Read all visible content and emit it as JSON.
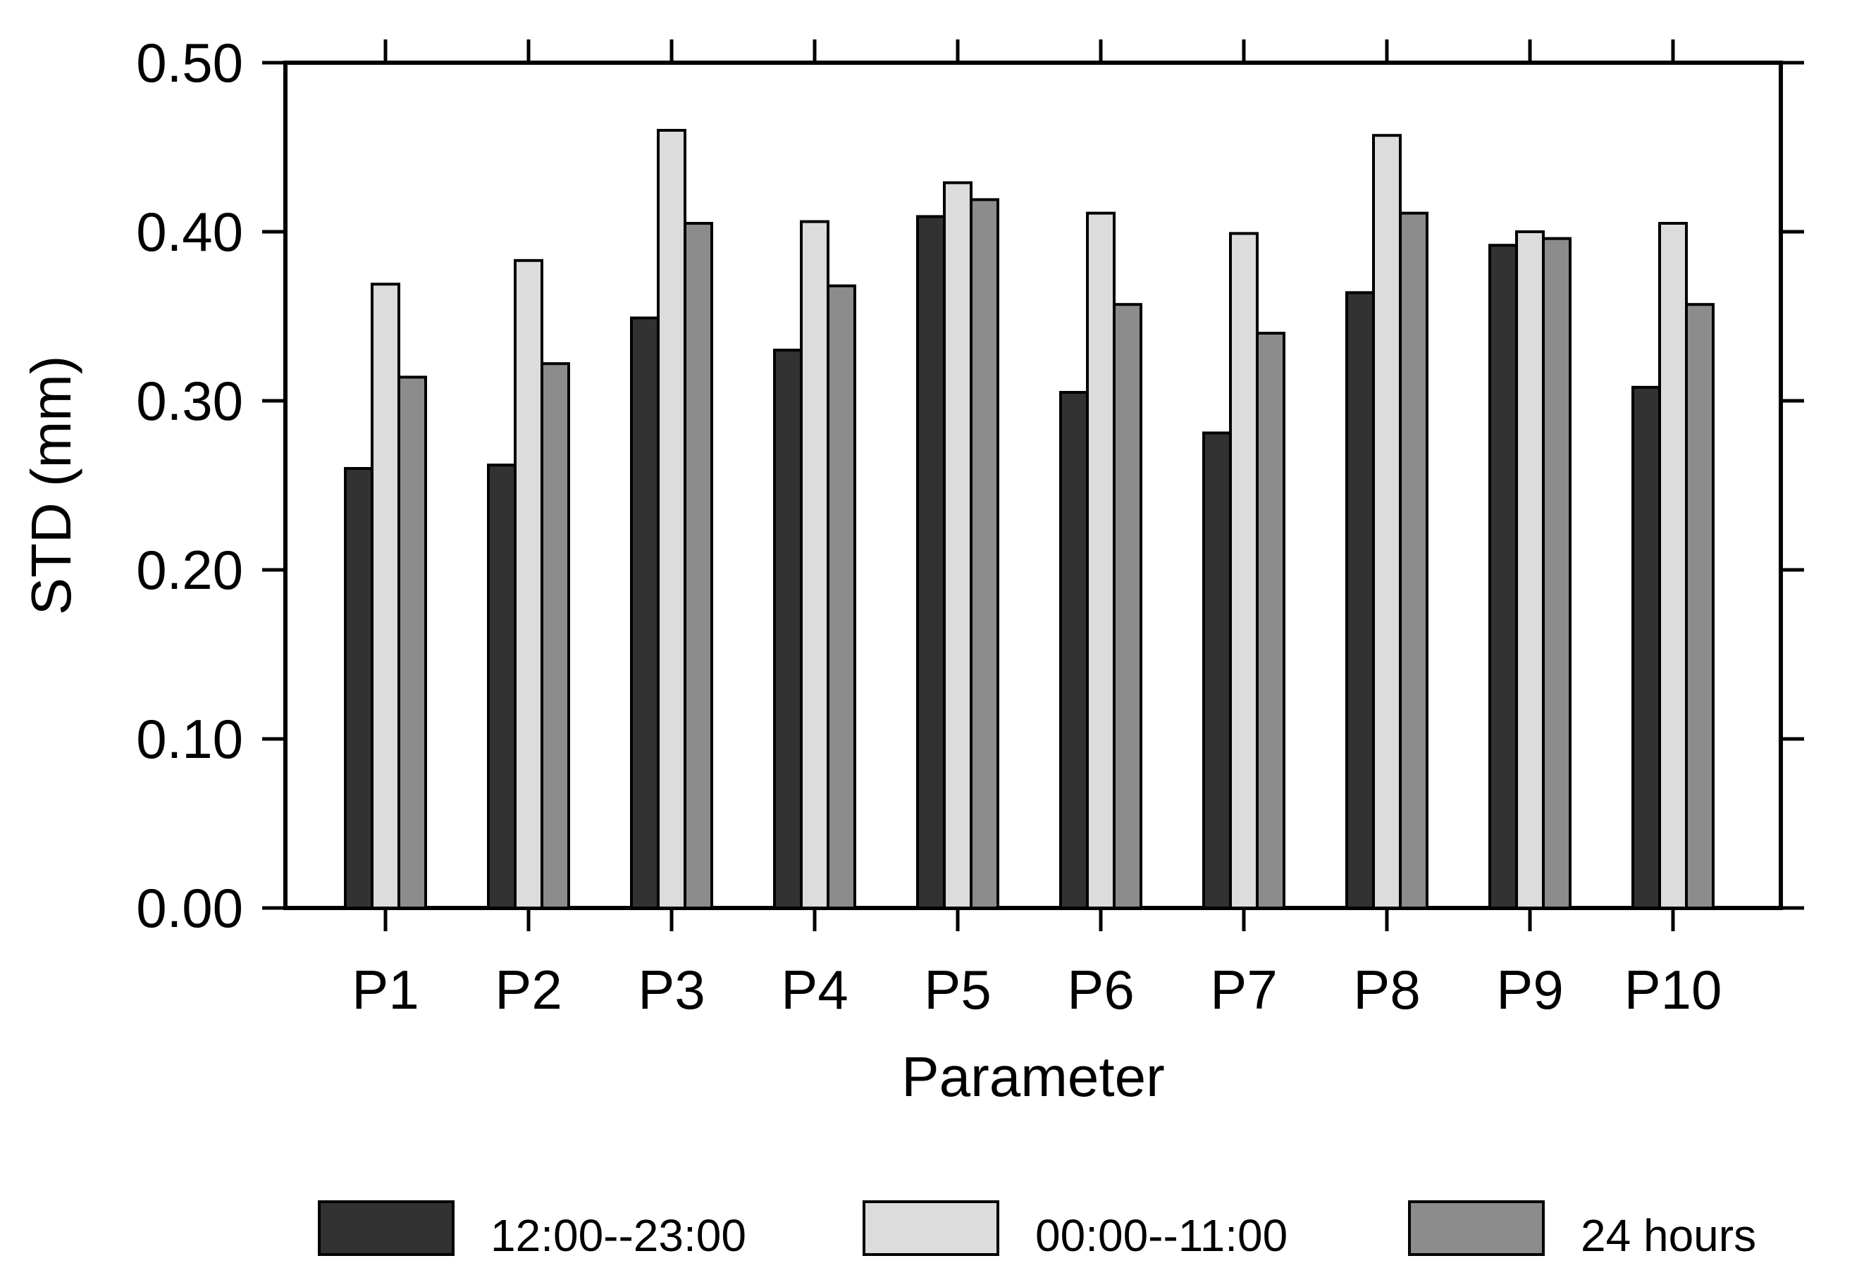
{
  "chart_data": {
    "type": "bar",
    "title": "",
    "xlabel": "Parameter",
    "ylabel": "STD (mm)",
    "categories": [
      "P1",
      "P2",
      "P3",
      "P4",
      "P5",
      "P6",
      "P7",
      "P8",
      "P9",
      "P10"
    ],
    "series": [
      {
        "name": "12:00--23:00",
        "color": "#323232",
        "values": [
          0.26,
          0.262,
          0.349,
          0.33,
          0.409,
          0.305,
          0.281,
          0.364,
          0.392,
          0.308
        ]
      },
      {
        "name": "00:00--11:00",
        "color": "#dcdcdc",
        "values": [
          0.369,
          0.383,
          0.46,
          0.406,
          0.429,
          0.411,
          0.399,
          0.457,
          0.4,
          0.405
        ]
      },
      {
        "name": "24 hours",
        "color": "#8c8c8c",
        "values": [
          0.314,
          0.322,
          0.405,
          0.368,
          0.419,
          0.357,
          0.34,
          0.411,
          0.396,
          0.357
        ]
      }
    ],
    "ylim": [
      0.0,
      0.5
    ],
    "ytick_step": 0.1,
    "yticks": [
      "0.00",
      "0.10",
      "0.20",
      "0.30",
      "0.40",
      "0.50"
    ],
    "grid": false,
    "legend_position": "bottom",
    "frame": "box-with-mirrored-outward-ticks",
    "axis_color": "#000000",
    "bar_outline_color": "#000000"
  }
}
